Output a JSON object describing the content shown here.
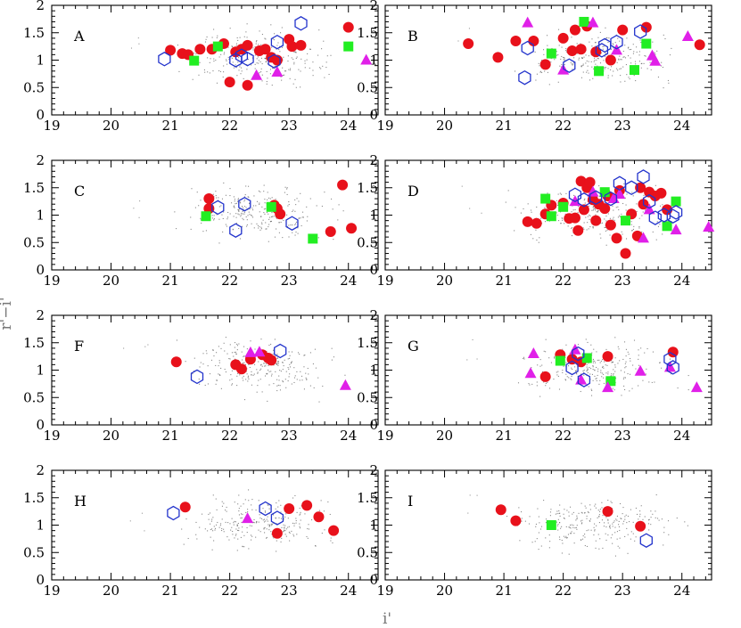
{
  "figure": {
    "x_axis_label": "i'",
    "y_axis_label": "r'−i'"
  },
  "chart_data": {
    "type": "scatter",
    "xlim": [
      19,
      24.5
    ],
    "ylim": [
      0,
      2
    ],
    "x_ticks": [
      19,
      20,
      21,
      22,
      23,
      24
    ],
    "y_ticks": [
      0,
      0.5,
      1,
      1.5,
      2
    ],
    "xlabel": "i'",
    "ylabel": "r'−i'",
    "colors": {
      "circle": "#e8111b",
      "square": "#22ee22",
      "triangle": "#e020e8",
      "hexagon": "#2233cc",
      "background": "#555555"
    },
    "panels": [
      {
        "label": "A",
        "series": [
          {
            "name": "circle",
            "points": [
              [
                21.0,
                1.18
              ],
              [
                21.2,
                1.12
              ],
              [
                21.3,
                1.1
              ],
              [
                21.5,
                1.2
              ],
              [
                21.7,
                1.2
              ],
              [
                21.9,
                1.3
              ],
              [
                22.0,
                0.6
              ],
              [
                22.1,
                1.15
              ],
              [
                22.2,
                1.2
              ],
              [
                22.3,
                1.27
              ],
              [
                22.3,
                0.54
              ],
              [
                22.5,
                1.17
              ],
              [
                22.6,
                1.2
              ],
              [
                22.7,
                1.05
              ],
              [
                22.8,
                1.0
              ],
              [
                23.0,
                1.38
              ],
              [
                23.05,
                1.25
              ],
              [
                23.2,
                1.27
              ],
              [
                24.0,
                1.6
              ]
            ]
          },
          {
            "name": "square",
            "points": [
              [
                21.4,
                0.99
              ],
              [
                21.8,
                1.25
              ],
              [
                24.0,
                1.25
              ]
            ]
          },
          {
            "name": "triangle",
            "points": [
              [
                22.45,
                0.72
              ],
              [
                22.8,
                0.78
              ],
              [
                24.3,
                1.0
              ]
            ]
          },
          {
            "name": "hexagon",
            "points": [
              [
                20.9,
                1.02
              ],
              [
                22.1,
                1.0
              ],
              [
                22.2,
                1.08
              ],
              [
                22.3,
                1.02
              ],
              [
                22.8,
                1.33
              ],
              [
                23.2,
                1.67
              ],
              [
                22.75,
                0.98
              ]
            ]
          }
        ]
      },
      {
        "label": "B",
        "series": [
          {
            "name": "circle",
            "points": [
              [
                20.4,
                1.3
              ],
              [
                20.9,
                1.05
              ],
              [
                21.2,
                1.35
              ],
              [
                21.5,
                1.35
              ],
              [
                21.7,
                0.92
              ],
              [
                22.0,
                1.4
              ],
              [
                22.15,
                1.17
              ],
              [
                22.2,
                1.55
              ],
              [
                22.3,
                1.2
              ],
              [
                22.4,
                1.62
              ],
              [
                22.55,
                1.15
              ],
              [
                22.8,
                1.0
              ],
              [
                23.0,
                1.55
              ],
              [
                23.4,
                1.6
              ],
              [
                24.3,
                1.28
              ]
            ]
          },
          {
            "name": "square",
            "points": [
              [
                21.8,
                1.12
              ],
              [
                22.35,
                1.7
              ],
              [
                22.6,
                0.8
              ],
              [
                23.2,
                0.82
              ],
              [
                23.4,
                1.3
              ]
            ]
          },
          {
            "name": "triangle",
            "points": [
              [
                21.4,
                1.68
              ],
              [
                22.0,
                0.82
              ],
              [
                22.5,
                1.68
              ],
              [
                22.9,
                1.18
              ],
              [
                23.5,
                1.08
              ],
              [
                24.1,
                1.43
              ],
              [
                23.55,
                0.98
              ]
            ]
          },
          {
            "name": "hexagon",
            "points": [
              [
                21.35,
                0.68
              ],
              [
                21.4,
                1.22
              ],
              [
                22.1,
                0.9
              ],
              [
                22.7,
                1.27
              ],
              [
                22.65,
                1.18
              ],
              [
                22.9,
                1.33
              ],
              [
                23.3,
                1.52
              ]
            ]
          }
        ]
      },
      {
        "label": "C",
        "series": [
          {
            "name": "circle",
            "points": [
              [
                21.65,
                1.3
              ],
              [
                21.65,
                1.12
              ],
              [
                22.75,
                1.18
              ],
              [
                22.8,
                1.12
              ],
              [
                22.85,
                1.02
              ],
              [
                23.7,
                0.7
              ],
              [
                23.9,
                1.55
              ],
              [
                24.05,
                0.76
              ]
            ]
          },
          {
            "name": "square",
            "points": [
              [
                21.6,
                0.98
              ],
              [
                22.7,
                1.15
              ],
              [
                23.4,
                0.57
              ]
            ]
          },
          {
            "name": "triangle",
            "points": []
          },
          {
            "name": "hexagon",
            "points": [
              [
                21.8,
                1.14
              ],
              [
                22.1,
                0.72
              ],
              [
                22.25,
                1.2
              ],
              [
                23.05,
                0.85
              ]
            ]
          }
        ]
      },
      {
        "label": "D",
        "series": [
          {
            "name": "circle",
            "points": [
              [
                21.4,
                0.88
              ],
              [
                21.55,
                0.85
              ],
              [
                21.7,
                1.02
              ],
              [
                21.8,
                1.18
              ],
              [
                22.0,
                1.22
              ],
              [
                22.1,
                0.94
              ],
              [
                22.25,
                0.72
              ],
              [
                22.3,
                1.62
              ],
              [
                22.4,
                1.5
              ],
              [
                22.45,
                1.6
              ],
              [
                22.5,
                1.28
              ],
              [
                22.55,
                0.9
              ],
              [
                22.6,
                1.2
              ],
              [
                22.7,
                1.12
              ],
              [
                22.75,
                1.35
              ],
              [
                22.8,
                0.82
              ],
              [
                22.9,
                0.58
              ],
              [
                22.95,
                1.45
              ],
              [
                23.05,
                0.3
              ],
              [
                23.15,
                1.02
              ],
              [
                23.25,
                0.62
              ],
              [
                23.3,
                1.5
              ],
              [
                23.35,
                1.2
              ],
              [
                23.45,
                1.42
              ],
              [
                23.55,
                1.35
              ],
              [
                23.65,
                1.4
              ],
              [
                23.75,
                1.1
              ],
              [
                22.2,
                0.95
              ],
              [
                22.35,
                1.1
              ]
            ]
          },
          {
            "name": "square",
            "points": [
              [
                21.7,
                1.3
              ],
              [
                22.0,
                1.15
              ],
              [
                22.7,
                1.42
              ],
              [
                23.05,
                0.9
              ],
              [
                23.75,
                0.8
              ],
              [
                23.9,
                1.25
              ],
              [
                21.8,
                0.98
              ]
            ]
          },
          {
            "name": "triangle",
            "points": [
              [
                22.2,
                1.25
              ],
              [
                22.5,
                1.42
              ],
              [
                22.95,
                1.38
              ],
              [
                23.45,
                1.1
              ],
              [
                23.9,
                0.73
              ],
              [
                24.45,
                0.78
              ],
              [
                22.85,
                1.3
              ],
              [
                23.35,
                0.58
              ]
            ]
          },
          {
            "name": "hexagon",
            "points": [
              [
                22.2,
                1.37
              ],
              [
                22.35,
                1.28
              ],
              [
                22.55,
                1.32
              ],
              [
                22.8,
                1.3
              ],
              [
                22.95,
                1.58
              ],
              [
                23.15,
                1.5
              ],
              [
                23.35,
                1.7
              ],
              [
                23.45,
                1.25
              ],
              [
                23.55,
                0.95
              ],
              [
                23.7,
                1.0
              ],
              [
                23.9,
                1.05
              ],
              [
                23.85,
                0.98
              ]
            ]
          }
        ]
      },
      {
        "label": "F",
        "series": [
          {
            "name": "circle",
            "points": [
              [
                21.1,
                1.15
              ],
              [
                22.1,
                1.1
              ],
              [
                22.2,
                1.02
              ],
              [
                22.35,
                1.2
              ],
              [
                22.55,
                1.28
              ],
              [
                22.65,
                1.22
              ],
              [
                22.7,
                1.18
              ]
            ]
          },
          {
            "name": "square",
            "points": []
          },
          {
            "name": "triangle",
            "points": [
              [
                22.35,
                1.32
              ],
              [
                22.5,
                1.33
              ],
              [
                23.95,
                0.72
              ]
            ]
          },
          {
            "name": "hexagon",
            "points": [
              [
                21.45,
                0.88
              ],
              [
                22.85,
                1.35
              ]
            ]
          }
        ]
      },
      {
        "label": "G",
        "series": [
          {
            "name": "circle",
            "points": [
              [
                21.7,
                0.88
              ],
              [
                21.95,
                1.28
              ],
              [
                22.15,
                1.2
              ],
              [
                22.3,
                1.15
              ],
              [
                22.75,
                1.25
              ],
              [
                23.85,
                1.33
              ]
            ]
          },
          {
            "name": "square",
            "points": [
              [
                21.95,
                1.17
              ],
              [
                22.4,
                1.22
              ],
              [
                22.8,
                0.8
              ]
            ]
          },
          {
            "name": "triangle",
            "points": [
              [
                21.5,
                1.3
              ],
              [
                21.45,
                0.94
              ],
              [
                22.2,
                1.37
              ],
              [
                22.3,
                0.82
              ],
              [
                22.75,
                0.68
              ],
              [
                23.3,
                0.98
              ],
              [
                23.8,
                1.05
              ],
              [
                24.25,
                0.68
              ]
            ]
          },
          {
            "name": "hexagon",
            "points": [
              [
                22.15,
                1.04
              ],
              [
                22.25,
                1.3
              ],
              [
                22.35,
                0.82
              ],
              [
                23.8,
                1.2
              ],
              [
                23.85,
                1.05
              ]
            ]
          }
        ]
      },
      {
        "label": "H",
        "series": [
          {
            "name": "circle",
            "points": [
              [
                21.25,
                1.33
              ],
              [
                22.8,
                0.85
              ],
              [
                23.0,
                1.3
              ],
              [
                23.3,
                1.36
              ],
              [
                23.5,
                1.15
              ],
              [
                23.75,
                0.9
              ]
            ]
          },
          {
            "name": "square",
            "points": []
          },
          {
            "name": "triangle",
            "points": [
              [
                22.3,
                1.12
              ]
            ]
          },
          {
            "name": "hexagon",
            "points": [
              [
                21.05,
                1.22
              ],
              [
                22.6,
                1.3
              ],
              [
                22.8,
                1.13
              ]
            ]
          }
        ]
      },
      {
        "label": "I",
        "series": [
          {
            "name": "circle",
            "points": [
              [
                20.95,
                1.28
              ],
              [
                21.2,
                1.08
              ],
              [
                22.75,
                1.25
              ],
              [
                23.3,
                0.98
              ]
            ]
          },
          {
            "name": "square",
            "points": [
              [
                21.8,
                1.0
              ]
            ]
          },
          {
            "name": "triangle",
            "points": []
          },
          {
            "name": "hexagon",
            "points": [
              [
                23.4,
                0.72
              ]
            ]
          }
        ]
      }
    ]
  }
}
